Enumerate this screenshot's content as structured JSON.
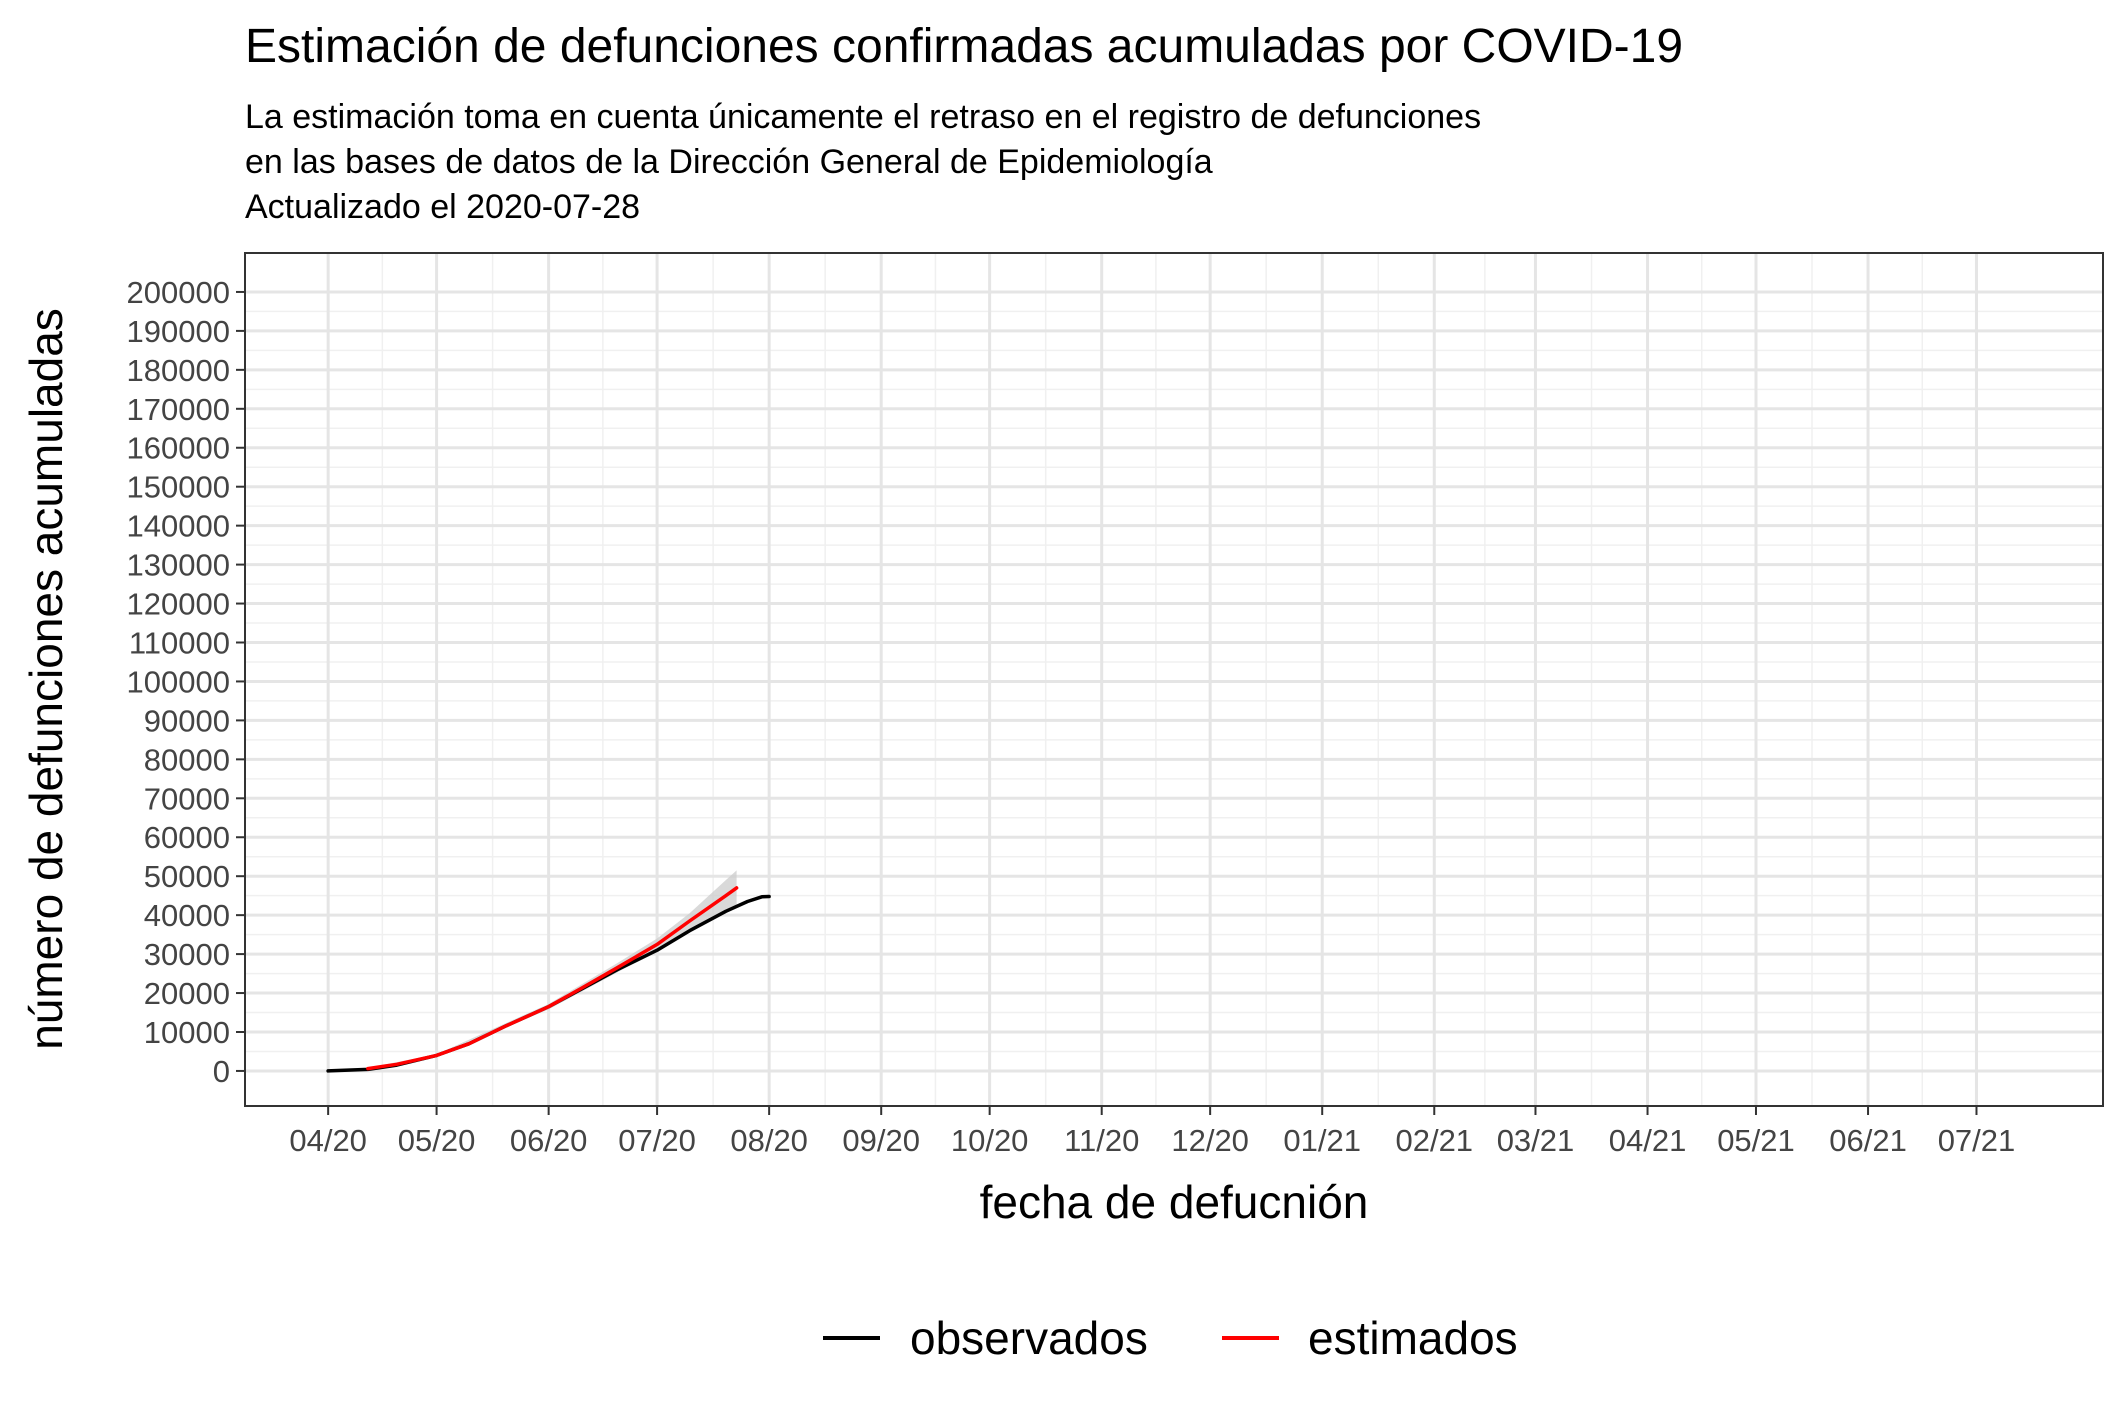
{
  "chart_data": {
    "type": "line",
    "title": "Estimación de defunciones confirmadas acumuladas por COVID-19",
    "subtitle": [
      "La estimación toma en cuenta únicamente el retraso en el registro de defunciones",
      "en las bases de datos de la Dirección General de Epidemiología",
      "Actualizado el 2020-07-28"
    ],
    "xlabel": "fecha de defucnión",
    "ylabel": "número de defunciones acumuladas",
    "xlim": [
      "2020-03-09",
      "2021-08-05"
    ],
    "ylim": [
      -9000,
      210000
    ],
    "x_ticks": [
      {
        "date": "2020-04-01",
        "label": "04/20"
      },
      {
        "date": "2020-05-01",
        "label": "05/20"
      },
      {
        "date": "2020-06-01",
        "label": "06/20"
      },
      {
        "date": "2020-07-01",
        "label": "07/20"
      },
      {
        "date": "2020-08-01",
        "label": "08/20"
      },
      {
        "date": "2020-09-01",
        "label": "09/20"
      },
      {
        "date": "2020-10-01",
        "label": "10/20"
      },
      {
        "date": "2020-11-01",
        "label": "11/20"
      },
      {
        "date": "2020-12-01",
        "label": "12/20"
      },
      {
        "date": "2021-01-01",
        "label": "01/21"
      },
      {
        "date": "2021-02-01",
        "label": "02/21"
      },
      {
        "date": "2021-03-01",
        "label": "03/21"
      },
      {
        "date": "2021-04-01",
        "label": "04/21"
      },
      {
        "date": "2021-05-01",
        "label": "05/21"
      },
      {
        "date": "2021-06-01",
        "label": "06/21"
      },
      {
        "date": "2021-07-01",
        "label": "07/21"
      }
    ],
    "y_ticks": [
      0,
      10000,
      20000,
      30000,
      40000,
      50000,
      60000,
      70000,
      80000,
      90000,
      100000,
      110000,
      120000,
      130000,
      140000,
      150000,
      160000,
      170000,
      180000,
      190000,
      200000
    ],
    "grid": true,
    "legend_position": "bottom",
    "series": [
      {
        "name": "observados",
        "color": "#000000",
        "points": [
          {
            "x": "2020-04-01",
            "y": 0
          },
          {
            "x": "2020-04-12",
            "y": 400
          },
          {
            "x": "2020-04-20",
            "y": 1500
          },
          {
            "x": "2020-05-01",
            "y": 4000
          },
          {
            "x": "2020-05-10",
            "y": 7000
          },
          {
            "x": "2020-05-20",
            "y": 11500
          },
          {
            "x": "2020-06-01",
            "y": 16500
          },
          {
            "x": "2020-06-10",
            "y": 21000
          },
          {
            "x": "2020-06-20",
            "y": 26000
          },
          {
            "x": "2020-07-01",
            "y": 31000
          },
          {
            "x": "2020-07-10",
            "y": 36000
          },
          {
            "x": "2020-07-20",
            "y": 41000
          },
          {
            "x": "2020-07-26",
            "y": 43500
          },
          {
            "x": "2020-07-30",
            "y": 44700
          },
          {
            "x": "2020-08-01",
            "y": 44800
          }
        ]
      },
      {
        "name": "estimados",
        "color": "#ff0000",
        "points": [
          {
            "x": "2020-04-12",
            "y": 600
          },
          {
            "x": "2020-04-20",
            "y": 1700
          },
          {
            "x": "2020-05-01",
            "y": 4000
          },
          {
            "x": "2020-05-10",
            "y": 7000
          },
          {
            "x": "2020-05-20",
            "y": 11500
          },
          {
            "x": "2020-06-01",
            "y": 16500
          },
          {
            "x": "2020-06-10",
            "y": 21200
          },
          {
            "x": "2020-06-20",
            "y": 26500
          },
          {
            "x": "2020-07-01",
            "y": 32500
          },
          {
            "x": "2020-07-10",
            "y": 38500
          },
          {
            "x": "2020-07-20",
            "y": 45000
          },
          {
            "x": "2020-07-23",
            "y": 47000
          }
        ]
      }
    ],
    "confidence_band": {
      "color": "#cccccc",
      "points": [
        {
          "x": "2020-04-12",
          "lower": 400,
          "upper": 800
        },
        {
          "x": "2020-05-01",
          "lower": 3700,
          "upper": 4300
        },
        {
          "x": "2020-06-01",
          "lower": 15800,
          "upper": 17200
        },
        {
          "x": "2020-06-20",
          "lower": 25300,
          "upper": 27700
        },
        {
          "x": "2020-07-01",
          "lower": 31000,
          "upper": 34000
        },
        {
          "x": "2020-07-10",
          "lower": 36500,
          "upper": 40500
        },
        {
          "x": "2020-07-20",
          "lower": 41000,
          "upper": 49000
        },
        {
          "x": "2020-07-23",
          "lower": 42500,
          "upper": 51500
        }
      ]
    }
  }
}
